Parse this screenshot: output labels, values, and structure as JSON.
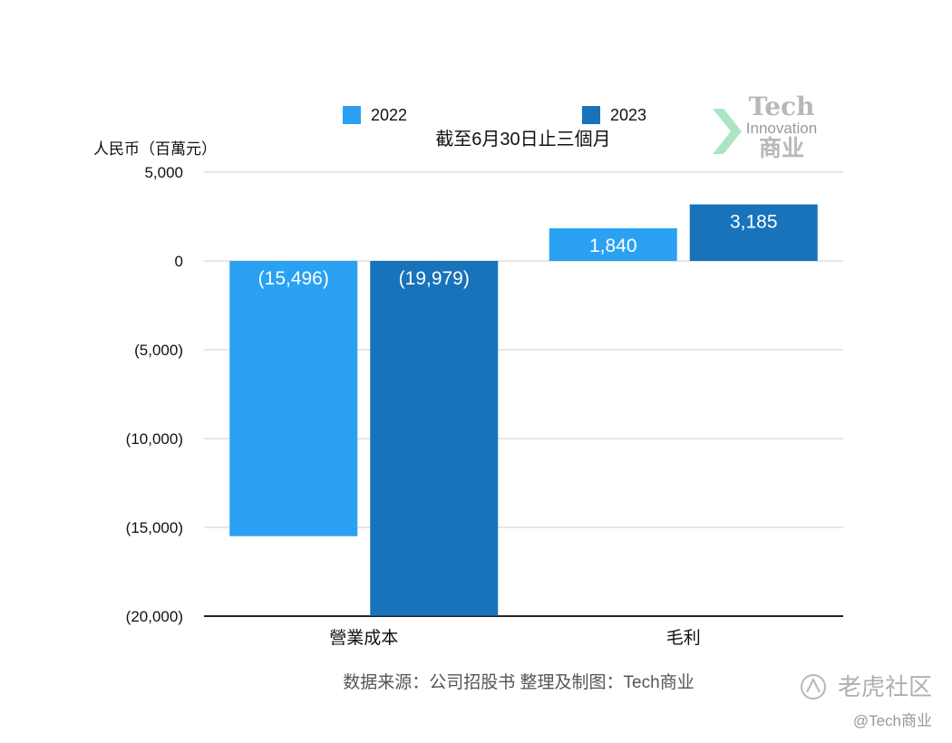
{
  "chart_data": {
    "type": "bar",
    "title": "截至6月30日止三個月",
    "ylabel": "人民币（百萬元）",
    "categories": [
      "營業成本",
      "毛利"
    ],
    "series": [
      {
        "name": "2022",
        "color": "#2aa1f3",
        "values": [
          -15496,
          1840
        ],
        "labels": [
          "(15,496)",
          "1,840"
        ]
      },
      {
        "name": "2023",
        "color": "#1873bb",
        "values": [
          -19979,
          3185
        ],
        "labels": [
          "(19,979)",
          "3,185"
        ]
      }
    ],
    "ylim": [
      -20000,
      5000
    ],
    "yticks": [
      5000,
      0,
      -5000,
      -10000,
      -15000,
      -20000
    ],
    "ytick_labels": [
      "5,000",
      "0",
      "(5,000)",
      "(10,000)",
      "(15,000)",
      "(20,000)"
    ],
    "grid": true,
    "legend_position": "top"
  },
  "source_note": "数据来源：公司招股书  整理及制图：Tech商业",
  "logo": {
    "line1": "Tech",
    "line2": "Innovation",
    "line3": "商业",
    "accent": "#7fd6a0"
  },
  "watermark": {
    "brand": "老虎社区",
    "handle": "@Tech商业"
  }
}
